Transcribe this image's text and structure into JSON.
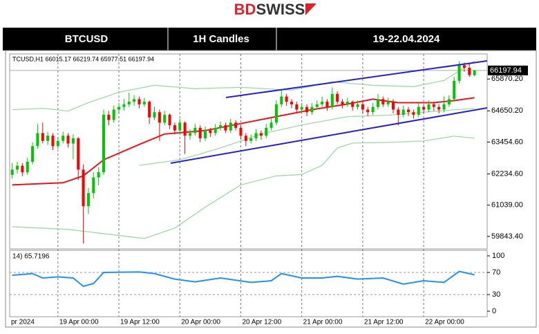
{
  "header": {
    "logo": [
      "BD",
      "SWISS"
    ],
    "cells": [
      "BTCUSD",
      "1H Candles",
      "19-22.04.2024"
    ]
  },
  "chart_data": {
    "type": "candlestick",
    "info_label": "TCUSD,H1  66015.17 66219.74 65977.51 66197.94",
    "up_color": "#00c800",
    "down_color": "#ff0000",
    "xlim": [
      -0.5,
      93.5
    ],
    "xticks": [
      {
        "value": -0.5,
        "label": "pr 2024"
      },
      {
        "value": 9,
        "label": "19 Apr 00:00"
      },
      {
        "value": 21,
        "label": "19 Apr 12:00"
      },
      {
        "value": 33,
        "label": "20 Apr 00:00"
      },
      {
        "value": 45,
        "label": "20 Apr 12:00"
      },
      {
        "value": 57,
        "label": "21 Apr 00:00"
      },
      {
        "value": 69,
        "label": "21 Apr 12:00"
      },
      {
        "value": 81,
        "label": "22 Apr 00:00"
      }
    ],
    "grid": true,
    "ylim": [
      59363,
      66830
    ],
    "yticks": [
      {
        "value": 65870.2,
        "label": "65870.20"
      },
      {
        "value": 64650.2,
        "label": "64650.20"
      },
      {
        "value": 63454.6,
        "label": "63454.60"
      },
      {
        "value": 62234.6,
        "label": "62234.60"
      },
      {
        "value": 61039,
        "label": "61039.00"
      },
      {
        "value": 59843.4,
        "label": "59843.40"
      }
    ],
    "last_price": 66197.94,
    "candles": [
      [
        62200,
        62650,
        62050,
        62400
      ],
      [
        62400,
        62700,
        62250,
        62550
      ],
      [
        62550,
        62650,
        62150,
        62300
      ],
      [
        62300,
        62850,
        62200,
        62700
      ],
      [
        62700,
        63450,
        62600,
        63300
      ],
      [
        63300,
        64150,
        63200,
        63800
      ],
      [
        63800,
        64200,
        63400,
        63500
      ],
      [
        63500,
        63850,
        63350,
        63700
      ],
      [
        63700,
        63800,
        63150,
        63300
      ],
      [
        63300,
        63650,
        63200,
        63500
      ],
      [
        63500,
        63850,
        63400,
        63700
      ],
      [
        63700,
        63800,
        63250,
        63400
      ],
      [
        63400,
        63750,
        62800,
        63600
      ],
      [
        63600,
        63650,
        62000,
        62400
      ],
      [
        62400,
        62600,
        59570,
        61000
      ],
      [
        61000,
        61700,
        60700,
        61500
      ],
      [
        61500,
        62300,
        61300,
        62100
      ],
      [
        62100,
        62500,
        61800,
        62300
      ],
      [
        62300,
        64700,
        62200,
        64500
      ],
      [
        64500,
        64650,
        64100,
        64300
      ],
      [
        64300,
        64850,
        64200,
        64700
      ],
      [
        64700,
        64950,
        64550,
        64800
      ],
      [
        64800,
        65100,
        64650,
        64900
      ],
      [
        64900,
        65350,
        64800,
        65000
      ],
      [
        65000,
        65250,
        64850,
        65100
      ],
      [
        65100,
        65200,
        64750,
        64900
      ],
      [
        64900,
        65150,
        64800,
        65000
      ],
      [
        65000,
        65050,
        64150,
        64400
      ],
      [
        64400,
        64800,
        64300,
        64600
      ],
      [
        64600,
        64700,
        63500,
        64200
      ],
      [
        64200,
        64650,
        64100,
        64500
      ],
      [
        64500,
        64550,
        63950,
        64100
      ],
      [
        64100,
        64200,
        63750,
        63900
      ],
      [
        63900,
        64350,
        63800,
        64200
      ],
      [
        64200,
        64250,
        63000,
        63700
      ],
      [
        63700,
        63950,
        63550,
        63800
      ],
      [
        63800,
        64150,
        63700,
        64000
      ],
      [
        64000,
        64100,
        63450,
        63600
      ],
      [
        63600,
        64050,
        63500,
        63900
      ],
      [
        63900,
        64000,
        63650,
        63800
      ],
      [
        63800,
        64150,
        63700,
        64000
      ],
      [
        64000,
        64250,
        63900,
        64100
      ],
      [
        64100,
        64200,
        63800,
        63900
      ],
      [
        63900,
        64350,
        63800,
        64200
      ],
      [
        64200,
        64300,
        63900,
        64000
      ],
      [
        64000,
        64100,
        63550,
        63700
      ],
      [
        63700,
        63800,
        63300,
        63500
      ],
      [
        63500,
        63750,
        63400,
        63600
      ],
      [
        63600,
        63950,
        63500,
        63800
      ],
      [
        63800,
        63900,
        63550,
        63700
      ],
      [
        63700,
        64150,
        63600,
        64000
      ],
      [
        64000,
        64350,
        63900,
        64200
      ],
      [
        64200,
        65050,
        64100,
        64900
      ],
      [
        64900,
        65450,
        64800,
        65200
      ],
      [
        65200,
        65300,
        64850,
        65000
      ],
      [
        65000,
        65100,
        64750,
        64900
      ],
      [
        64900,
        65000,
        64550,
        64700
      ],
      [
        64700,
        64950,
        64600,
        64800
      ],
      [
        64800,
        64900,
        64450,
        64600
      ],
      [
        64600,
        64950,
        64500,
        64800
      ],
      [
        64800,
        65050,
        64700,
        64900
      ],
      [
        64900,
        65200,
        64800,
        65000
      ],
      [
        65000,
        65100,
        64650,
        64800
      ],
      [
        64800,
        65550,
        64700,
        65300
      ],
      [
        65300,
        65400,
        64900,
        65000
      ],
      [
        65000,
        65100,
        64750,
        64900
      ],
      [
        64900,
        65150,
        64800,
        65000
      ],
      [
        65000,
        65050,
        64650,
        64800
      ],
      [
        64800,
        65050,
        64700,
        64900
      ],
      [
        64900,
        65000,
        64550,
        64700
      ],
      [
        64700,
        64800,
        64450,
        64600
      ],
      [
        64600,
        64950,
        64500,
        64800
      ],
      [
        64800,
        65300,
        64700,
        65100
      ],
      [
        65100,
        65200,
        64800,
        64900
      ],
      [
        64900,
        65150,
        64800,
        65000
      ],
      [
        65000,
        65100,
        64550,
        64700
      ],
      [
        64700,
        64800,
        64100,
        64500
      ],
      [
        64500,
        64850,
        64400,
        64700
      ],
      [
        64700,
        64800,
        64450,
        64600
      ],
      [
        64600,
        64700,
        64350,
        64500
      ],
      [
        64500,
        64950,
        64400,
        64800
      ],
      [
        64800,
        64850,
        64550,
        64700
      ],
      [
        64700,
        65050,
        64600,
        64900
      ],
      [
        64900,
        65000,
        64650,
        64800
      ],
      [
        64800,
        64900,
        64550,
        64700
      ],
      [
        64700,
        65200,
        64600,
        64900
      ],
      [
        64900,
        65250,
        64800,
        65100
      ],
      [
        65100,
        65950,
        65000,
        65800
      ],
      [
        65800,
        66550,
        65700,
        66400
      ],
      [
        66400,
        66500,
        66150,
        66300
      ],
      [
        66300,
        66450,
        65950,
        66020
      ],
      [
        66015.17,
        66219.74,
        65977.51,
        66197.94
      ]
    ],
    "indicators": [
      {
        "color": "#9fd9a6",
        "x": [
          0,
          6,
          11,
          15,
          21,
          28,
          36,
          45,
          55,
          63,
          71,
          79,
          85,
          89,
          91
        ],
        "values": [
          64697,
          64750,
          64643,
          64963,
          65363,
          65630,
          65497,
          65550,
          65443,
          65763,
          65630,
          65577,
          65817,
          66297,
          66563
        ]
      },
      {
        "color": "#9fd9a6",
        "x": [
          25,
          33,
          41,
          49,
          57,
          66,
          74,
          82,
          91
        ],
        "values": [
          62563,
          62776,
          63230,
          63763,
          64110,
          64430,
          64483,
          64617,
          64750
        ]
      },
      {
        "color": "#9fd9a6",
        "x": [
          0,
          11,
          18,
          26,
          32,
          38,
          45,
          52,
          57,
          61,
          64,
          67,
          74,
          81,
          87,
          91
        ],
        "values": [
          60216,
          60110,
          59950,
          59763,
          60163,
          60963,
          61816,
          62163,
          62216,
          62563,
          63230,
          63417,
          63443,
          63497,
          63683,
          63603
        ]
      },
      {
        "color": "#e8141a",
        "x": [
          0,
          10,
          14,
          18,
          25,
          30,
          38,
          45,
          52,
          59,
          66,
          71,
          76,
          83,
          87,
          91
        ],
        "values": [
          61816,
          61896,
          62163,
          62776,
          63363,
          63763,
          63896,
          64163,
          64430,
          64697,
          64910,
          65097,
          64963,
          64963,
          65043,
          65150
        ]
      }
    ],
    "rsi": {
      "label": "14) 65.7196",
      "color": "#1e90ff",
      "ylim": [
        -10,
        110
      ],
      "yticks": [
        100,
        70,
        30,
        0
      ],
      "dashed_levels": [
        70,
        30
      ],
      "x": [
        0,
        4,
        6,
        9,
        12,
        14,
        16,
        18,
        25,
        28,
        32,
        36,
        41,
        47,
        51,
        53,
        57,
        61,
        64,
        68,
        73,
        77,
        81,
        85,
        88,
        91
      ],
      "values": [
        65,
        68,
        60,
        62,
        60,
        45,
        50,
        70,
        71,
        68,
        58,
        53,
        60,
        52,
        55,
        68,
        60,
        60,
        63,
        58,
        60,
        49,
        55,
        52,
        72,
        65.7196
      ]
    }
  }
}
